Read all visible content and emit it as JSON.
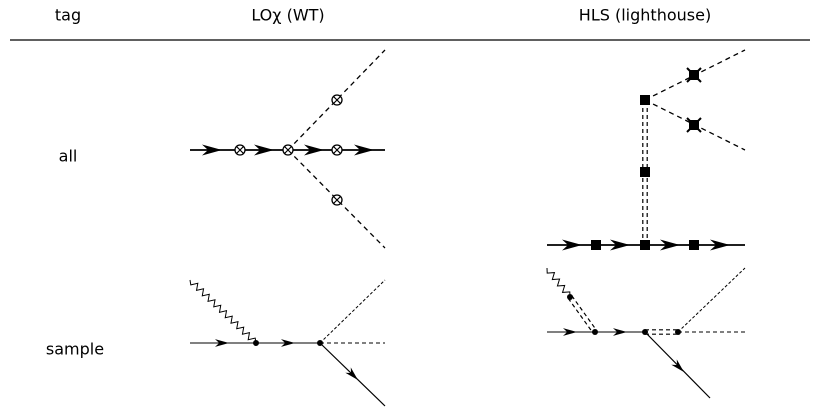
{
  "table": {
    "header": [
      "tag",
      "LOχ (WT)",
      "HLS (lighthouse)"
    ],
    "rows": [
      [
        "all"
      ],
      [
        "sample"
      ]
    ]
  }
}
